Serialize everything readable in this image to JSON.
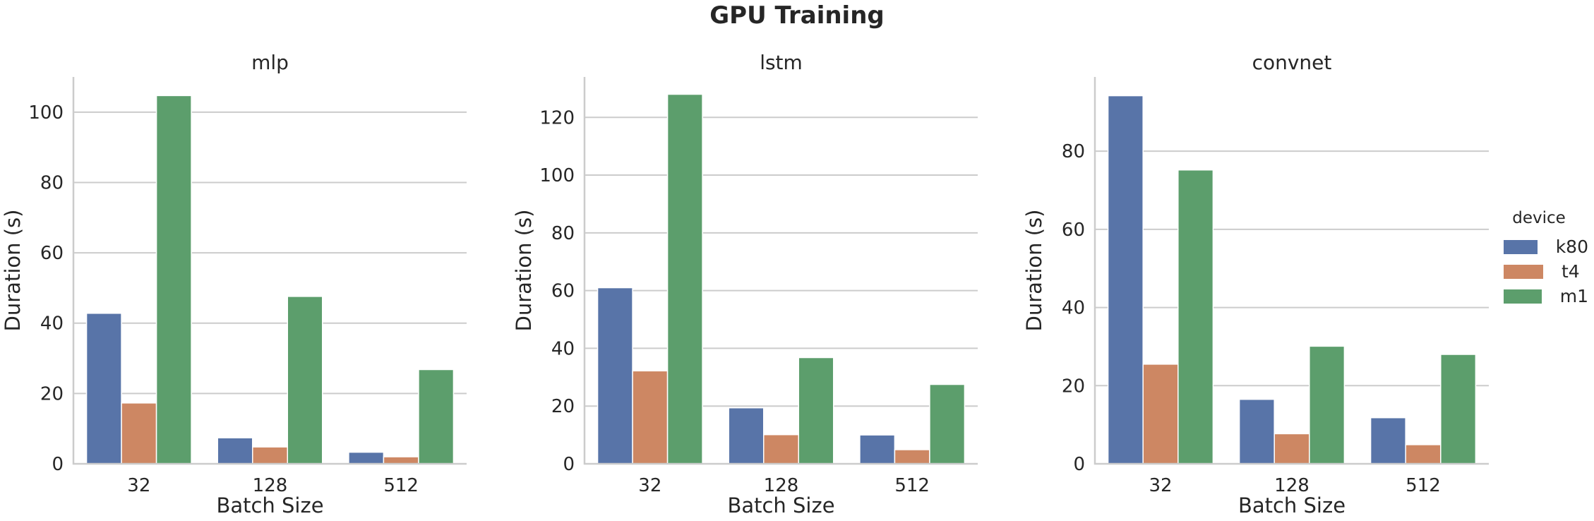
{
  "suptitle": "GPU Training",
  "legend": {
    "title": "device",
    "items": [
      {
        "label": "k80",
        "color": "#5874a8"
      },
      {
        "label": "t4",
        "color": "#cd8763"
      },
      {
        "label": "m1",
        "color": "#5c9e6c"
      }
    ]
  },
  "chart_data": [
    {
      "type": "bar",
      "title": "mlp",
      "xlabel": "Batch Size",
      "ylabel": "Duration (s)",
      "categories": [
        "32",
        "128",
        "512"
      ],
      "ylim": [
        0,
        110
      ],
      "yticks": [
        0,
        20,
        40,
        60,
        80,
        100
      ],
      "grid": "horizontal",
      "series": [
        {
          "name": "k80",
          "values": [
            42.8,
            7.4,
            3.3
          ]
        },
        {
          "name": "t4",
          "values": [
            17.3,
            4.8,
            2.0
          ]
        },
        {
          "name": "m1",
          "values": [
            104.7,
            47.6,
            26.8
          ]
        }
      ]
    },
    {
      "type": "bar",
      "title": "lstm",
      "xlabel": "Batch Size",
      "ylabel": "Duration (s)",
      "categories": [
        "32",
        "128",
        "512"
      ],
      "ylim": [
        0,
        134
      ],
      "yticks": [
        0,
        20,
        40,
        60,
        80,
        100,
        120
      ],
      "grid": "horizontal",
      "series": [
        {
          "name": "k80",
          "values": [
            61.0,
            19.4,
            10.0
          ]
        },
        {
          "name": "t4",
          "values": [
            32.2,
            10.1,
            4.9
          ]
        },
        {
          "name": "m1",
          "values": [
            128.0,
            36.8,
            27.5
          ]
        }
      ]
    },
    {
      "type": "bar",
      "title": "convnet",
      "xlabel": "Batch Size",
      "ylabel": "Duration (s)",
      "categories": [
        "32",
        "128",
        "512"
      ],
      "ylim": [
        0,
        99
      ],
      "yticks": [
        0,
        20,
        40,
        60,
        80
      ],
      "grid": "horizontal",
      "series": [
        {
          "name": "k80",
          "values": [
            94.2,
            16.5,
            11.8
          ]
        },
        {
          "name": "t4",
          "values": [
            25.5,
            7.7,
            4.9
          ]
        },
        {
          "name": "m1",
          "values": [
            75.2,
            30.1,
            28.0
          ]
        }
      ]
    }
  ]
}
